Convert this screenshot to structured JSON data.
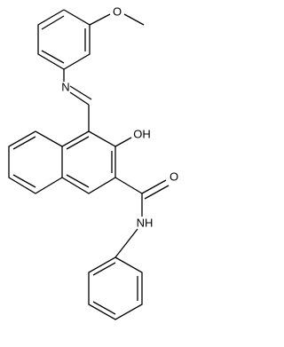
{
  "atoms": {
    "methoxy_o": "O",
    "imine_n": "N",
    "hydroxyl": "OH",
    "carbonyl_o": "O",
    "amide_nh": "NH"
  }
}
